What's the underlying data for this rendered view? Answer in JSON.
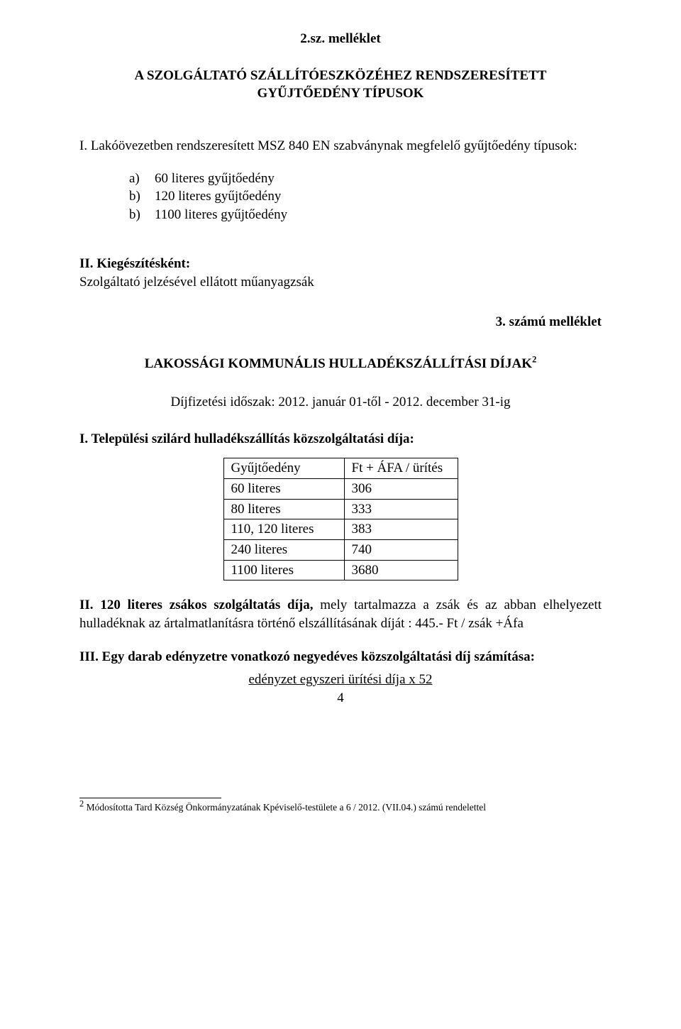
{
  "header": {
    "num": "2.sz. melléklet",
    "title_line1": "A SZOLGÁLTATÓ SZÁLLÍTÓESZKÖZÉHEZ RENDSZERESÍTETT",
    "title_line2": "GYŰJTŐEDÉNY TÍPUSOK"
  },
  "sectionI": {
    "intro": "I. Lakóövezetben rendszeresített MSZ 840 EN szabványnak megfelelő gyűjtőedény típusok:",
    "items": [
      {
        "marker": "a)",
        "text": "60 literes gyűjtőedény"
      },
      {
        "marker": "b)",
        "text": "120 literes gyűjtőedény"
      },
      {
        "marker": "b)",
        "text": "1100 literes gyűjtőedény"
      }
    ]
  },
  "sectionII": {
    "title": "II. Kiegészítésként:",
    "text": "Szolgáltató jelzésével ellátott műanyagzsák"
  },
  "annex3": {
    "label": "3. számú melléklet",
    "heading": "LAKOSSÁGI KOMMUNÁLIS HULLADÉKSZÁLLÍTÁSI DÍJAK",
    "heading_sup": "2",
    "period": "Díjfizetési időszak: 2012. január 01-től - 2012. december 31-ig",
    "subI": "I. Települési szilárd hulladékszállítás közszolgáltatási díja:",
    "table": {
      "header": [
        "Gyűjtőedény",
        "Ft + ÁFA / ürítés"
      ],
      "rows": [
        [
          "60 literes",
          "306"
        ],
        [
          "80 literes",
          "333"
        ],
        [
          "110, 120 literes",
          "383"
        ],
        [
          "240 literes",
          "740"
        ],
        [
          "1100 literes",
          "3680"
        ]
      ]
    },
    "subII_lead": "II. 120 literes zsákos szolgáltatás díja,",
    "subII_rest": " mely tartalmazza a zsák és az abban elhelyezett hulladéknak az ártalmatlanításra történő elszállításának díját : 445.- Ft / zsák +Áfa",
    "subIII": "III. Egy darab edényzetre vonatkozó negyedéves közszolgáltatási díj számítása:",
    "formula_top": "edényzet egyszeri ürítési díja x 52",
    "formula_bottom": "4"
  },
  "footnote": {
    "sup": "2",
    "text": " Módosította Tard Község Önkormányzatának Kpéviselő-testülete a  6 / 2012. (VII.04.) számú rendelettel"
  }
}
